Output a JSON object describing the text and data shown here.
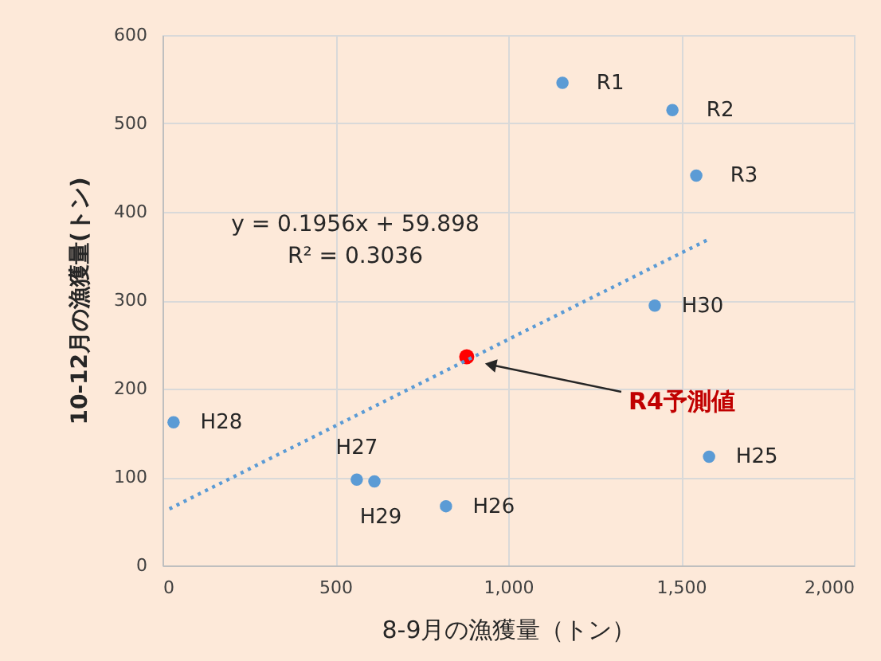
{
  "chart_data": {
    "type": "scatter",
    "xlabel": "8-9月の漁獲量（トン）",
    "ylabel": "10-12月の漁獲量(トン)",
    "xlim": [
      0,
      2000
    ],
    "xticks": [
      0,
      500,
      {
        "value": 1000,
        "label": "1,000"
      },
      {
        "value": 1500,
        "label": "1,500"
      },
      {
        "value": 2000,
        "label": "2,000"
      }
    ],
    "ylim": [
      0,
      600
    ],
    "yticks": [
      0,
      100,
      200,
      300,
      400,
      500,
      600
    ],
    "grid": true,
    "marker": "circle",
    "series": [
      {
        "color": "#5b9bd5",
        "x": [
          1157,
          1475,
          1544,
          1424,
          32,
          1581,
          562,
          613,
          820
        ],
        "values": [
          546,
          515,
          441,
          294,
          162,
          123,
          97,
          95,
          67
        ]
      },
      {
        "color": "#ff0000",
        "x": [
          880
        ],
        "values": [
          236
        ]
      },
      {
        "type": "line",
        "color": "#5b9bd5",
        "line_style": "dotted",
        "marker": "none",
        "x": [
          20,
          1580
        ],
        "values": [
          64,
          369
        ]
      }
    ],
    "annotations": [
      {
        "text": "R1",
        "x": 1157,
        "y": 546
      },
      {
        "text": "R2",
        "x": 1475,
        "y": 515
      },
      {
        "text": "R3",
        "x": 1544,
        "y": 441
      },
      {
        "text": "H30",
        "x": 1424,
        "y": 294
      },
      {
        "text": "H28",
        "x": 32,
        "y": 162
      },
      {
        "text": "H25",
        "x": 1581,
        "y": 123
      },
      {
        "text": "H27",
        "x": 562,
        "y": 97
      },
      {
        "text": "H29",
        "x": 613,
        "y": 95
      },
      {
        "text": "H26",
        "x": 820,
        "y": 67
      },
      "R4予測値",
      "y = 0.1956x + 59.898",
      "R² = 0.3036"
    ]
  }
}
